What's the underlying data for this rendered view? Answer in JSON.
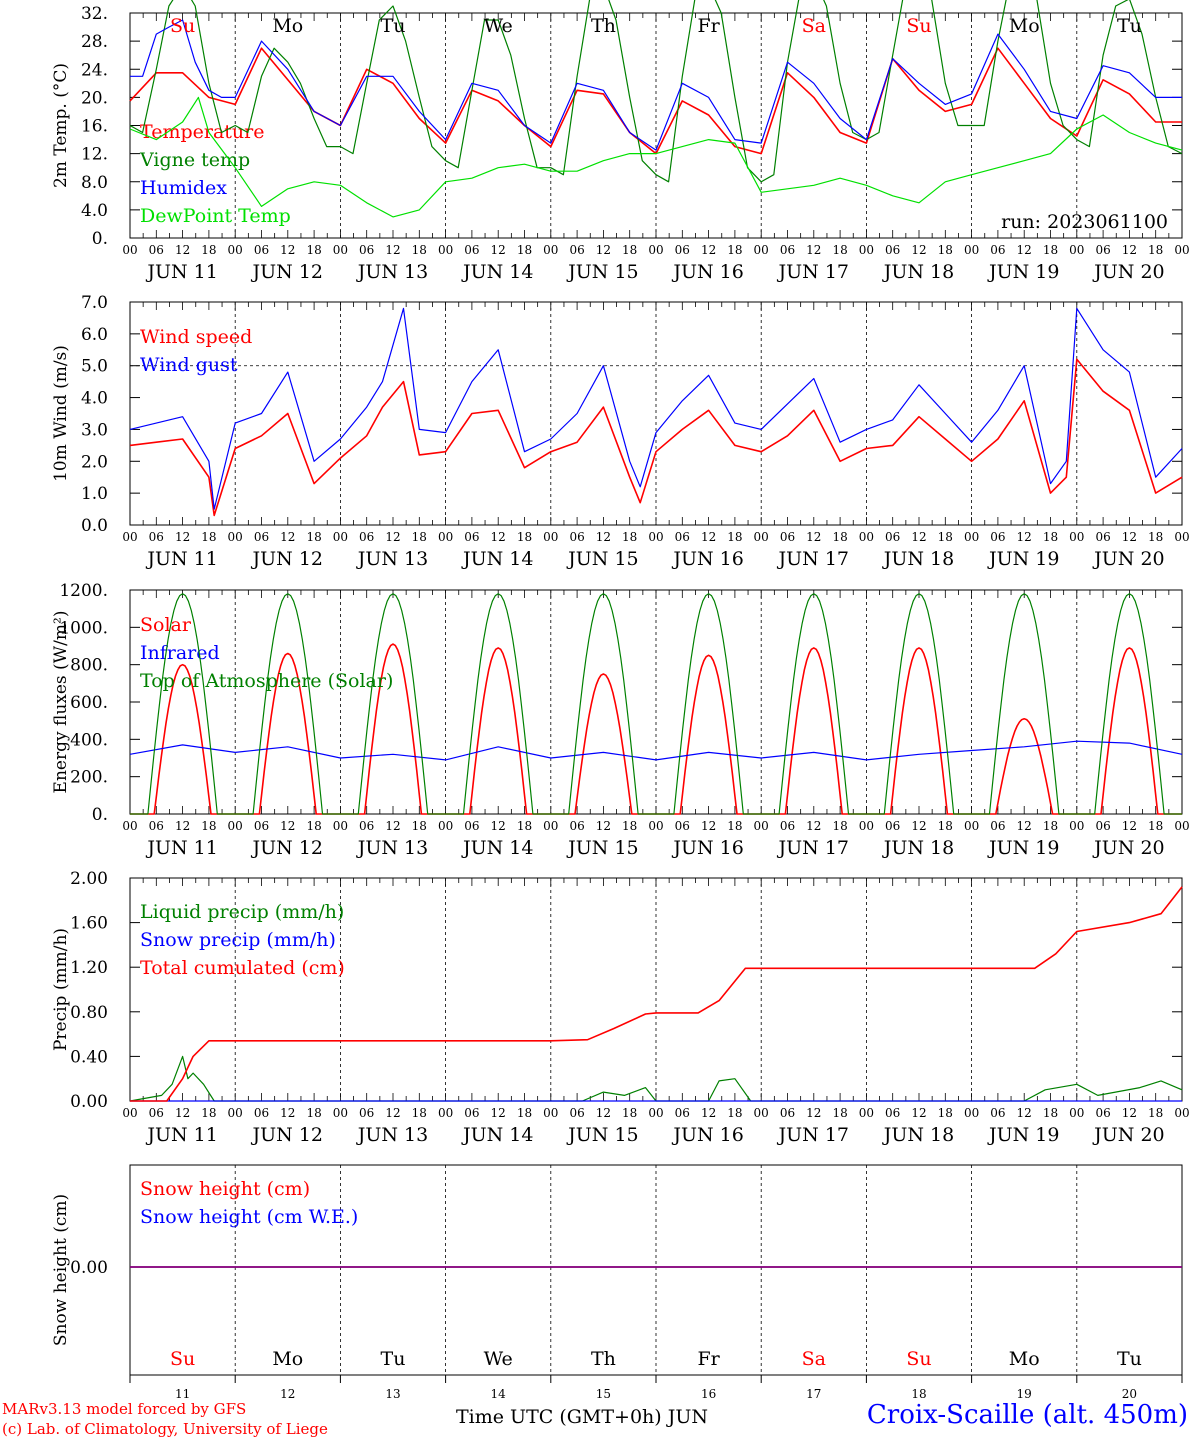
{
  "colors": {
    "red": "#ff0000",
    "blue": "#0000ff",
    "green": "#008000",
    "lightgreen": "#00e000",
    "purple": "#800080",
    "black": "#000000"
  },
  "days": [
    "Su",
    "Mo",
    "Tu",
    "We",
    "Th",
    "Fr",
    "Sa",
    "Su",
    "Mo",
    "Tu"
  ],
  "weekend_days": [
    0,
    6,
    7
  ],
  "dates": [
    "JUN 11",
    "JUN 12",
    "JUN 13",
    "JUN 14",
    "JUN 15",
    "JUN 16",
    "JUN 17",
    "JUN 18",
    "JUN 19",
    "JUN 20"
  ],
  "day_numbers": [
    "11",
    "12",
    "13",
    "14",
    "15",
    "16",
    "17",
    "18",
    "19",
    "20"
  ],
  "hour_ticks": [
    "00",
    "06",
    "12",
    "18"
  ],
  "run_label": "run: 2023061100",
  "xtitle": "Time UTC (GMT+0h) JUN",
  "credit_line1": "MARv3.13 model forced by GFS",
  "credit_line2": "(c) Lab. of Climatology, University of Liege",
  "station": "Croix-Scaille (alt. 450m)",
  "chart_data": [
    {
      "type": "line",
      "ylabel": "2m Temp. (°C)",
      "ylim": [
        0,
        32
      ],
      "yticks": [
        "0.",
        "4.0",
        "8.0",
        "12.",
        "16.",
        "20.",
        "24.",
        "28.",
        "32."
      ],
      "series": [
        {
          "name": "Temperature",
          "color": "red",
          "x": [
            0,
            0.25,
            0.5,
            0.75,
            1,
            1.25,
            1.5,
            1.75,
            2,
            2.25,
            2.5,
            2.75,
            3,
            3.25,
            3.5,
            3.75,
            4,
            4.25,
            4.5,
            4.75,
            5,
            5.25,
            5.5,
            5.75,
            6,
            6.25,
            6.5,
            6.75,
            7,
            7.25,
            7.5,
            7.75,
            8,
            8.25,
            8.5,
            8.75,
            9,
            9.25,
            9.5,
            9.75,
            10
          ],
          "y": [
            19.5,
            23.5,
            23.5,
            20,
            19,
            27,
            22.5,
            18,
            16,
            24,
            22,
            17,
            13.5,
            21,
            19.5,
            16,
            13,
            21,
            20.5,
            15,
            12,
            19.5,
            17.5,
            13,
            12,
            23.5,
            20,
            15,
            13.5,
            25.5,
            21,
            18,
            19,
            27,
            22,
            17,
            14.5,
            22.5,
            20.5,
            16.5,
            16.5
          ]
        },
        {
          "name": "Vigne temp",
          "color": "green",
          "x": [
            0,
            0.12,
            0.25,
            0.37,
            0.5,
            0.62,
            0.75,
            0.87,
            1,
            1.12,
            1.25,
            1.37,
            1.5,
            1.62,
            1.75,
            1.87,
            2,
            2.12,
            2.25,
            2.37,
            2.5,
            2.62,
            2.75,
            2.87,
            3,
            3.12,
            3.25,
            3.37,
            3.5,
            3.62,
            3.75,
            3.87,
            4,
            4.12,
            4.25,
            4.37,
            4.5,
            4.62,
            4.75,
            4.87,
            5,
            5.12,
            5.25,
            5.37,
            5.5,
            5.62,
            5.75,
            5.87,
            6,
            6.12,
            6.25,
            6.37,
            6.5,
            6.62,
            6.75,
            6.87,
            7,
            7.12,
            7.25,
            7.37,
            7.5,
            7.62,
            7.75,
            7.87,
            8,
            8.12,
            8.25,
            8.37,
            8.5,
            8.62,
            8.75,
            8.87,
            9,
            9.12,
            9.25,
            9.37,
            9.5,
            9.62,
            9.75,
            9.87,
            10
          ],
          "y": [
            16,
            15,
            24,
            33,
            36,
            33,
            22,
            15,
            16,
            15,
            23,
            27,
            25,
            22,
            17,
            13,
            13,
            12,
            22,
            31,
            33,
            28,
            20,
            13,
            11,
            10,
            21,
            31,
            31,
            26,
            17,
            10,
            10,
            9,
            23,
            34,
            36,
            31,
            20,
            11,
            9,
            8,
            23,
            34,
            36,
            32,
            20,
            10,
            8,
            9,
            25,
            35,
            37,
            33,
            22,
            15,
            14,
            15,
            26,
            36,
            38,
            34,
            22,
            16,
            16,
            16,
            28,
            37,
            39,
            34,
            22,
            16,
            14,
            13,
            26,
            33,
            34,
            29,
            20,
            13,
            12
          ]
        },
        {
          "name": "Humidex",
          "color": "blue",
          "x": [
            0,
            0.12,
            0.25,
            0.37,
            0.5,
            0.62,
            0.75,
            0.87,
            1,
            1.25,
            1.5,
            1.75,
            2,
            2.25,
            2.5,
            2.75,
            3,
            3.25,
            3.5,
            3.75,
            4,
            4.25,
            4.5,
            4.75,
            5,
            5.25,
            5.5,
            5.75,
            6,
            6.25,
            6.5,
            6.75,
            7,
            7.25,
            7.5,
            7.75,
            8,
            8.25,
            8.5,
            8.75,
            9,
            9.25,
            9.5,
            9.75,
            10
          ],
          "y": [
            23,
            23,
            29,
            30,
            31,
            25,
            21,
            20,
            20,
            28,
            24,
            18,
            16,
            23,
            23,
            18,
            14,
            22,
            21,
            16,
            13.5,
            22,
            21,
            15,
            12.5,
            22,
            20,
            14,
            13.5,
            25,
            22,
            17,
            14,
            25.5,
            22,
            19,
            20.5,
            29,
            24,
            18,
            17,
            24.5,
            23.5,
            20,
            20
          ]
        },
        {
          "name": "DewPoint Temp",
          "color": "lightgreen",
          "x": [
            0,
            0.25,
            0.5,
            0.65,
            0.75,
            0.9,
            1,
            1.25,
            1.5,
            1.75,
            2,
            2.25,
            2.5,
            2.75,
            3,
            3.25,
            3.5,
            3.75,
            4,
            4.25,
            4.5,
            4.75,
            5,
            5.25,
            5.5,
            5.75,
            6,
            6.25,
            6.5,
            6.75,
            7,
            7.25,
            7.5,
            7.75,
            8,
            8.25,
            8.5,
            8.75,
            9,
            9.25,
            9.5,
            9.75,
            10
          ],
          "y": [
            15.5,
            14,
            16.5,
            20,
            15,
            12,
            10,
            4.5,
            7,
            8,
            7.5,
            5,
            3,
            4,
            8,
            8.5,
            10,
            10.5,
            9.5,
            9.5,
            11,
            12,
            12,
            13,
            14,
            13.5,
            6.5,
            7,
            7.5,
            8.5,
            7.5,
            6,
            5,
            8,
            9,
            10,
            11,
            12,
            15.5,
            17.5,
            15,
            13.5,
            12.5
          ]
        }
      ]
    },
    {
      "type": "line",
      "ylabel": "10m Wind (m/s)",
      "ylim": [
        0,
        7
      ],
      "yticks": [
        "0.0",
        "1.0",
        "2.0",
        "3.0",
        "4.0",
        "5.0",
        "6.0",
        "7.0"
      ],
      "hline": 5,
      "series": [
        {
          "name": "Wind speed",
          "color": "red",
          "x": [
            0,
            0.25,
            0.5,
            0.75,
            0.8,
            1,
            1.25,
            1.5,
            1.75,
            2,
            2.25,
            2.4,
            2.6,
            2.75,
            3,
            3.25,
            3.5,
            3.75,
            4,
            4.25,
            4.5,
            4.75,
            4.85,
            5,
            5.25,
            5.5,
            5.75,
            6,
            6.25,
            6.5,
            6.75,
            7,
            7.25,
            7.5,
            7.75,
            8,
            8.25,
            8.5,
            8.75,
            8.9,
            9,
            9.25,
            9.5,
            9.75,
            10
          ],
          "y": [
            2.5,
            2.6,
            2.7,
            1.5,
            0.3,
            2.4,
            2.8,
            3.5,
            1.3,
            2.1,
            2.8,
            3.7,
            4.5,
            2.2,
            2.3,
            3.5,
            3.6,
            1.8,
            2.3,
            2.6,
            3.7,
            1.5,
            0.7,
            2.3,
            3.0,
            3.6,
            2.5,
            2.3,
            2.8,
            3.6,
            2.0,
            2.4,
            2.5,
            3.4,
            2.7,
            2.0,
            2.7,
            3.9,
            1.0,
            1.5,
            5.2,
            4.2,
            3.6,
            1.0,
            1.5
          ]
        },
        {
          "name": "Wind gust",
          "color": "blue",
          "x": [
            0,
            0.25,
            0.5,
            0.75,
            0.8,
            1,
            1.25,
            1.5,
            1.75,
            2,
            2.25,
            2.4,
            2.6,
            2.75,
            3,
            3.25,
            3.5,
            3.75,
            4,
            4.25,
            4.5,
            4.75,
            4.85,
            5,
            5.25,
            5.5,
            5.75,
            6,
            6.25,
            6.5,
            6.75,
            7,
            7.25,
            7.5,
            7.75,
            8,
            8.25,
            8.5,
            8.75,
            8.9,
            9,
            9.25,
            9.5,
            9.75,
            10
          ],
          "y": [
            3.0,
            3.2,
            3.4,
            2.0,
            0.5,
            3.2,
            3.5,
            4.8,
            2.0,
            2.7,
            3.7,
            4.5,
            6.8,
            3.0,
            2.9,
            4.5,
            5.5,
            2.3,
            2.7,
            3.5,
            5.0,
            2.0,
            1.2,
            2.9,
            3.9,
            4.7,
            3.2,
            3.0,
            3.8,
            4.6,
            2.6,
            3.0,
            3.3,
            4.4,
            3.5,
            2.6,
            3.6,
            5.0,
            1.3,
            2.0,
            6.8,
            5.5,
            4.8,
            1.5,
            2.4
          ]
        }
      ]
    },
    {
      "type": "line",
      "ylabel": "Energy fluxes (W/m²)",
      "ylim": [
        0,
        1200
      ],
      "yticks": [
        "0.",
        "200.",
        "400.",
        "600.",
        "800.",
        "1000.",
        "1200."
      ],
      "series": [
        {
          "name": "Solar",
          "color": "red",
          "daily_peaks": [
            800,
            860,
            910,
            890,
            750,
            850,
            890,
            890,
            510,
            890
          ]
        },
        {
          "name": "Infrared",
          "color": "blue",
          "x": [
            0,
            0.5,
            1,
            1.5,
            2,
            2.5,
            3,
            3.5,
            4,
            4.5,
            5,
            5.5,
            6,
            6.5,
            7,
            7.5,
            8,
            8.5,
            9,
            9.5,
            10
          ],
          "y": [
            320,
            370,
            330,
            360,
            300,
            320,
            290,
            360,
            300,
            330,
            290,
            330,
            300,
            330,
            290,
            320,
            340,
            360,
            390,
            380,
            320
          ]
        },
        {
          "name": "Top of Atmosphere (Solar)",
          "color": "green",
          "daily_peaks": [
            1180,
            1180,
            1180,
            1180,
            1180,
            1180,
            1180,
            1180,
            1180,
            1180
          ]
        }
      ]
    },
    {
      "type": "line",
      "ylabel": "Precip (mm/h)",
      "ylim": [
        0,
        2
      ],
      "yticks": [
        "0.00",
        "0.40",
        "0.80",
        "1.20",
        "1.60",
        "2.00"
      ],
      "series": [
        {
          "name": "Liquid precip (mm/h)",
          "color": "green",
          "x": [
            0,
            0.3,
            0.4,
            0.5,
            0.55,
            0.6,
            0.7,
            0.8,
            4.3,
            4.5,
            4.7,
            4.9,
            5.0,
            5.5,
            5.6,
            5.75,
            5.9,
            8.5,
            8.7,
            9.0,
            9.2,
            9.6,
            9.8,
            10
          ],
          "y": [
            0,
            0.05,
            0.15,
            0.4,
            0.2,
            0.25,
            0.15,
            0,
            0,
            0.08,
            0.05,
            0.12,
            0,
            0,
            0.18,
            0.2,
            0,
            0,
            0.1,
            0.15,
            0.05,
            0.12,
            0.18,
            0.1
          ]
        },
        {
          "name": "Snow precip (mm/h)",
          "color": "blue",
          "x": [
            0,
            10
          ],
          "y": [
            0,
            0
          ]
        },
        {
          "name": "Total cumulated (cm)",
          "color": "red",
          "x": [
            0,
            0.35,
            0.5,
            0.6,
            0.75,
            1,
            2,
            3,
            4,
            4.35,
            4.6,
            4.9,
            5,
            5.4,
            5.6,
            5.85,
            6,
            7,
            8,
            8.6,
            8.8,
            9,
            9.5,
            9.8,
            10
          ],
          "y": [
            0,
            0,
            0.2,
            0.4,
            0.54,
            0.54,
            0.54,
            0.54,
            0.54,
            0.55,
            0.65,
            0.78,
            0.79,
            0.79,
            0.9,
            1.19,
            1.19,
            1.19,
            1.19,
            1.19,
            1.32,
            1.52,
            1.6,
            1.68,
            1.92
          ]
        }
      ]
    },
    {
      "type": "line",
      "ylabel": "Snow height (cm)",
      "yticks": [
        "0.00"
      ],
      "series": [
        {
          "name": "Snow height (cm)",
          "color": "red",
          "x": [
            0,
            10
          ],
          "y": [
            0,
            0
          ]
        },
        {
          "name": "Snow height (cm W.E.)",
          "color": "blue",
          "x": [
            0,
            10
          ],
          "y": [
            0,
            0
          ]
        }
      ]
    }
  ]
}
